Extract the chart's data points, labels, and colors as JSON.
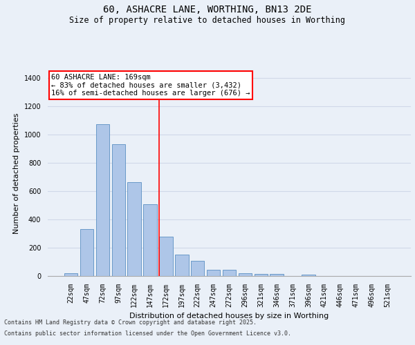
{
  "title_line1": "60, ASHACRE LANE, WORTHING, BN13 2DE",
  "title_line2": "Size of property relative to detached houses in Worthing",
  "xlabel": "Distribution of detached houses by size in Worthing",
  "ylabel": "Number of detached properties",
  "bar_categories": [
    "22sqm",
    "47sqm",
    "72sqm",
    "97sqm",
    "122sqm",
    "147sqm",
    "172sqm",
    "197sqm",
    "222sqm",
    "247sqm",
    "272sqm",
    "296sqm",
    "321sqm",
    "346sqm",
    "371sqm",
    "396sqm",
    "421sqm",
    "446sqm",
    "471sqm",
    "496sqm",
    "521sqm"
  ],
  "bar_values": [
    20,
    330,
    1070,
    930,
    665,
    505,
    280,
    150,
    105,
    45,
    45,
    20,
    15,
    15,
    0,
    10,
    0,
    0,
    0,
    0,
    0
  ],
  "bar_color": "#aec6e8",
  "bar_edge_color": "#5a8fc2",
  "grid_color": "#d0d8e8",
  "background_color": "#eaf0f8",
  "vline_index": 6,
  "vline_color": "red",
  "annotation_text": "60 ASHACRE LANE: 169sqm\n← 83% of detached houses are smaller (3,432)\n16% of semi-detached houses are larger (676) →",
  "annotation_box_facecolor": "white",
  "annotation_box_edgecolor": "red",
  "footer_line1": "Contains HM Land Registry data © Crown copyright and database right 2025.",
  "footer_line2": "Contains public sector information licensed under the Open Government Licence v3.0.",
  "ylim": [
    0,
    1450
  ],
  "yticks": [
    0,
    200,
    400,
    600,
    800,
    1000,
    1200,
    1400
  ],
  "title_fontsize": 10,
  "subtitle_fontsize": 8.5,
  "ylabel_fontsize": 8,
  "xlabel_fontsize": 8,
  "tick_fontsize": 7,
  "footer_fontsize": 6,
  "annotation_fontsize": 7.5
}
